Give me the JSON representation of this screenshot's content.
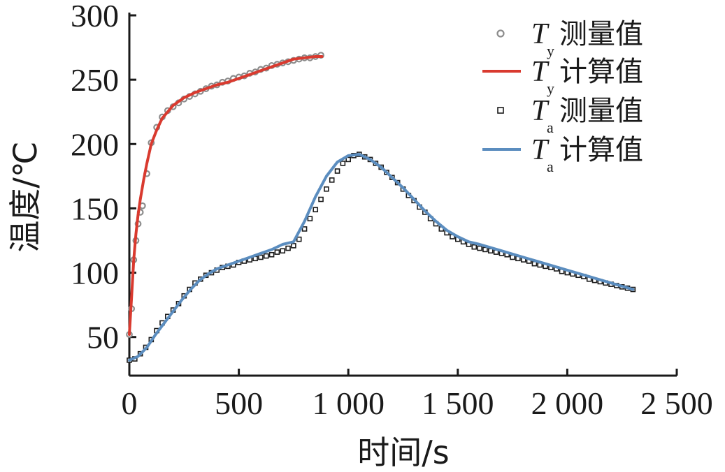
{
  "chart_data": {
    "type": "line",
    "xlabel": "时间/s",
    "ylabel": "温度/℃",
    "xlim": [
      0,
      2500
    ],
    "ylim": [
      20,
      300
    ],
    "x_ticks": [
      0,
      500,
      1000,
      1500,
      2000,
      2500
    ],
    "x_tick_labels": [
      "0",
      "500",
      "1 000",
      "1 500",
      "2 000",
      "2 500"
    ],
    "y_ticks": [
      50,
      100,
      150,
      200,
      250,
      300
    ],
    "y_tick_labels": [
      "50",
      "100",
      "150",
      "200",
      "250",
      "300"
    ],
    "legend_position": "top-right",
    "series": [
      {
        "legend_T": "T",
        "legend_sub": "y",
        "legend_rest": "测量值",
        "style": "marker-circle",
        "color": "#8c8c8c",
        "x": [
          0,
          10,
          20,
          30,
          40,
          50,
          60,
          80,
          100,
          125,
          150,
          175,
          200,
          225,
          250,
          275,
          300,
          325,
          350,
          375,
          400,
          425,
          450,
          475,
          500,
          525,
          550,
          575,
          600,
          625,
          650,
          675,
          700,
          725,
          750,
          775,
          800,
          825,
          850,
          875
        ],
        "y": [
          52,
          72,
          110,
          125,
          138,
          147,
          152,
          177,
          201,
          213,
          221,
          226,
          229,
          232,
          235,
          237,
          239,
          241,
          243,
          245,
          246,
          248,
          249,
          251,
          252,
          253,
          255,
          256,
          258,
          259,
          261,
          262,
          263,
          264,
          265,
          266,
          267,
          267,
          268,
          269
        ]
      },
      {
        "legend_T": "T",
        "legend_sub": "y",
        "legend_rest": "计算值",
        "style": "line",
        "color": "#d93a2f",
        "x": [
          0,
          10,
          20,
          30,
          40,
          50,
          65,
          80,
          100,
          125,
          150,
          200,
          250,
          300,
          350,
          400,
          450,
          500,
          550,
          600,
          650,
          700,
          750,
          800,
          850,
          880
        ],
        "y": [
          52,
          80,
          110,
          130,
          145,
          157,
          172,
          185,
          200,
          211,
          220,
          230,
          236,
          240,
          243,
          246,
          248,
          251,
          254,
          257,
          260,
          263,
          266,
          267,
          268,
          268
        ]
      },
      {
        "legend_T": "T",
        "legend_sub": "a",
        "legend_rest": "测量值",
        "style": "marker-square",
        "color": "#1a1a1a",
        "x": [
          0,
          25,
          50,
          75,
          100,
          125,
          150,
          175,
          200,
          225,
          250,
          275,
          300,
          325,
          350,
          375,
          400,
          425,
          450,
          475,
          500,
          525,
          550,
          575,
          600,
          625,
          650,
          675,
          700,
          725,
          750,
          775,
          800,
          825,
          850,
          875,
          900,
          925,
          950,
          975,
          1000,
          1025,
          1050,
          1075,
          1100,
          1125,
          1150,
          1175,
          1200,
          1225,
          1250,
          1275,
          1300,
          1325,
          1350,
          1375,
          1400,
          1425,
          1450,
          1475,
          1500,
          1525,
          1550,
          1575,
          1600,
          1625,
          1650,
          1675,
          1700,
          1725,
          1750,
          1775,
          1800,
          1825,
          1850,
          1875,
          1900,
          1925,
          1950,
          1975,
          2000,
          2025,
          2050,
          2075,
          2100,
          2125,
          2150,
          2175,
          2200,
          2225,
          2250,
          2275,
          2300
        ],
        "y": [
          32,
          33,
          37,
          42,
          48,
          55,
          61,
          66,
          71,
          76,
          82,
          87,
          92,
          95,
          98,
          100,
          102,
          104,
          105,
          106,
          108,
          109,
          110,
          111,
          112,
          113,
          114,
          116,
          117,
          119,
          121,
          126,
          134,
          142,
          149,
          157,
          165,
          172,
          179,
          185,
          188,
          191,
          192,
          190,
          188,
          185,
          182,
          178,
          174,
          170,
          165,
          160,
          156,
          151,
          147,
          142,
          138,
          134,
          131,
          128,
          126,
          124,
          122,
          120,
          119,
          118,
          117,
          116,
          115,
          114,
          112,
          111,
          110,
          109,
          107,
          106,
          105,
          104,
          103,
          101,
          100,
          99,
          98,
          97,
          95,
          94,
          93,
          92,
          91,
          90,
          89,
          88,
          87
        ]
      },
      {
        "legend_T": "T",
        "legend_sub": "a",
        "legend_rest": "计算值",
        "style": "line",
        "color": "#5b8dbf",
        "x": [
          0,
          40,
          80,
          120,
          160,
          200,
          240,
          280,
          320,
          360,
          400,
          450,
          500,
          550,
          600,
          650,
          700,
          750,
          800,
          850,
          900,
          950,
          1000,
          1050,
          1100,
          1150,
          1200,
          1250,
          1300,
          1350,
          1400,
          1450,
          1500,
          1550,
          1600,
          1700,
          1800,
          1900,
          2000,
          2100,
          2200,
          2300
        ],
        "y": [
          32,
          35,
          42,
          52,
          61,
          70,
          79,
          87,
          94,
          99,
          103,
          106,
          109,
          112,
          115,
          118,
          122,
          124,
          140,
          159,
          175,
          186,
          191,
          192,
          188,
          182,
          174,
          166,
          157,
          148,
          140,
          133,
          128,
          124,
          122,
          117,
          112,
          107,
          102,
          97,
          92,
          87
        ]
      }
    ]
  }
}
